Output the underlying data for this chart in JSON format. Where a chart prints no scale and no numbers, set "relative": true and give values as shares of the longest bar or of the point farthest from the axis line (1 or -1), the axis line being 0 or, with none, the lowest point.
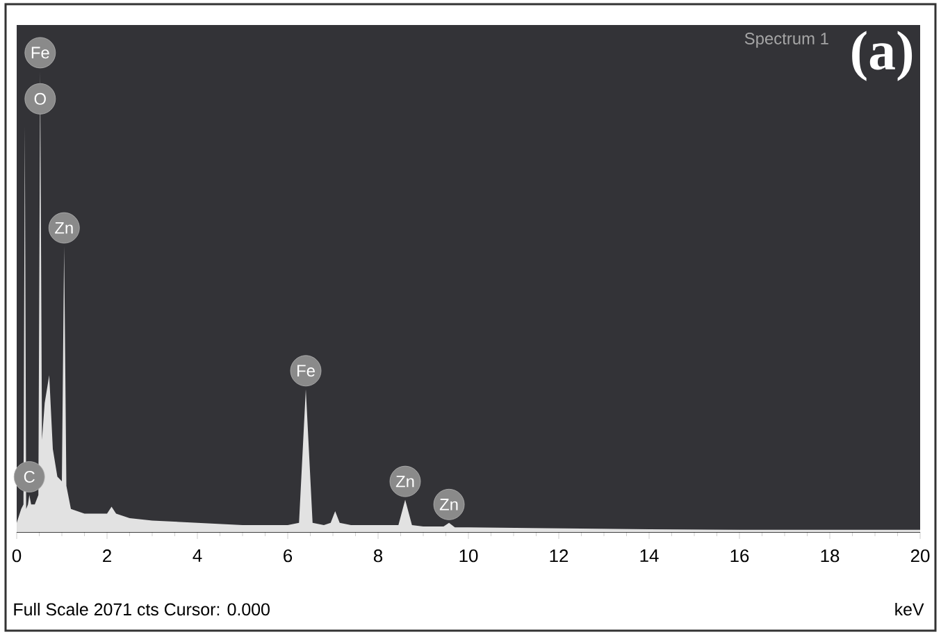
{
  "chart_data": {
    "type": "area",
    "title": "Spectrum 1",
    "xlabel": "keV",
    "relative": true,
    "xlim": [
      0,
      20
    ],
    "xticks": [
      0,
      2,
      4,
      6,
      8,
      10,
      12,
      14,
      16,
      18,
      20
    ],
    "series": [
      {
        "color": "#e2e2e2",
        "x": [
          0,
          0.1,
          0.15,
          0.18,
          0.21,
          0.25,
          0.28,
          0.32,
          0.4,
          0.48,
          0.52,
          0.56,
          0.62,
          0.72,
          0.8,
          0.9,
          1.0,
          1.05,
          1.1,
          1.2,
          1.5,
          2.0,
          2.1,
          2.2,
          2.5,
          3,
          4,
          5,
          6.0,
          6.25,
          6.4,
          6.55,
          6.8,
          6.95,
          7.05,
          7.15,
          7.4,
          8.0,
          8.45,
          8.6,
          8.75,
          9.0,
          9.45,
          9.57,
          9.7,
          10,
          12,
          14,
          16,
          18,
          20
        ],
        "values": [
          0.02,
          0.05,
          0.06,
          0.88,
          0.05,
          0.06,
          0.08,
          0.06,
          0.06,
          0.08,
          1.0,
          0.2,
          0.28,
          0.34,
          0.18,
          0.12,
          0.11,
          0.62,
          0.1,
          0.05,
          0.04,
          0.04,
          0.055,
          0.04,
          0.03,
          0.025,
          0.02,
          0.015,
          0.015,
          0.02,
          0.31,
          0.02,
          0.015,
          0.02,
          0.045,
          0.02,
          0.015,
          0.015,
          0.015,
          0.07,
          0.015,
          0.012,
          0.012,
          0.02,
          0.01,
          0.01,
          0.008,
          0.006,
          0.005,
          0.005,
          0.005
        ]
      }
    ],
    "annotations": [
      {
        "text": "Fe",
        "x": 0.52,
        "y": 1.0
      },
      {
        "text": "O",
        "x": 0.52,
        "y": 0.9
      },
      {
        "text": "Zn",
        "x": 1.05,
        "y": 0.62
      },
      {
        "text": "C",
        "x": 0.28,
        "y": 0.08
      },
      {
        "text": "Fe",
        "x": 6.4,
        "y": 0.31
      },
      {
        "text": "Zn",
        "x": 8.6,
        "y": 0.07
      },
      {
        "text": "Zn",
        "x": 9.57,
        "y": 0.02
      },
      "(a)",
      "Full Scale 2071 cts Cursor: 0.000"
    ]
  }
}
